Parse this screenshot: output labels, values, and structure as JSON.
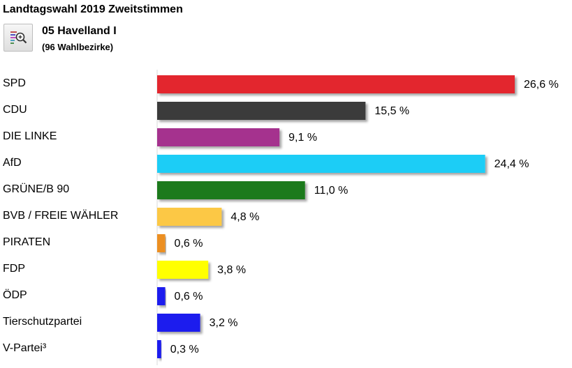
{
  "header": {
    "title": "Landtagswahl 2019 Zweitstimmen",
    "district": "05 Havelland I",
    "subtitle": "(96 Wahlbezirke)",
    "zoom_icon": "zoom-map-icon"
  },
  "chart_data": {
    "type": "bar",
    "orientation": "horizontal",
    "categories": [
      "SPD",
      "CDU",
      "DIE LINKE",
      "AfD",
      "GRÜNE/B 90",
      "BVB / FREIE WÄHLER",
      "PIRATEN",
      "FDP",
      "ÖDP",
      "Tierschutzpartei",
      "V-Partei³"
    ],
    "values": [
      26.6,
      15.5,
      9.1,
      24.4,
      11.0,
      4.8,
      0.6,
      3.8,
      0.6,
      3.2,
      0.3
    ],
    "value_labels": [
      "26,6 %",
      "15,5 %",
      "9,1 %",
      "24,4 %",
      "11,0 %",
      "4,8 %",
      "0,6 %",
      "3,8 %",
      "0,6 %",
      "3,2 %",
      "0,3 %"
    ],
    "colors": [
      "#e3262e",
      "#3b3b3b",
      "#a5318e",
      "#1ccdf6",
      "#1b7a1b",
      "#fcc845",
      "#ec8f24",
      "#ffff00",
      "#1a1aee",
      "#1a1aee",
      "#1a1aee"
    ],
    "xlim": [
      0,
      28
    ],
    "grid": false,
    "legend": "none"
  }
}
